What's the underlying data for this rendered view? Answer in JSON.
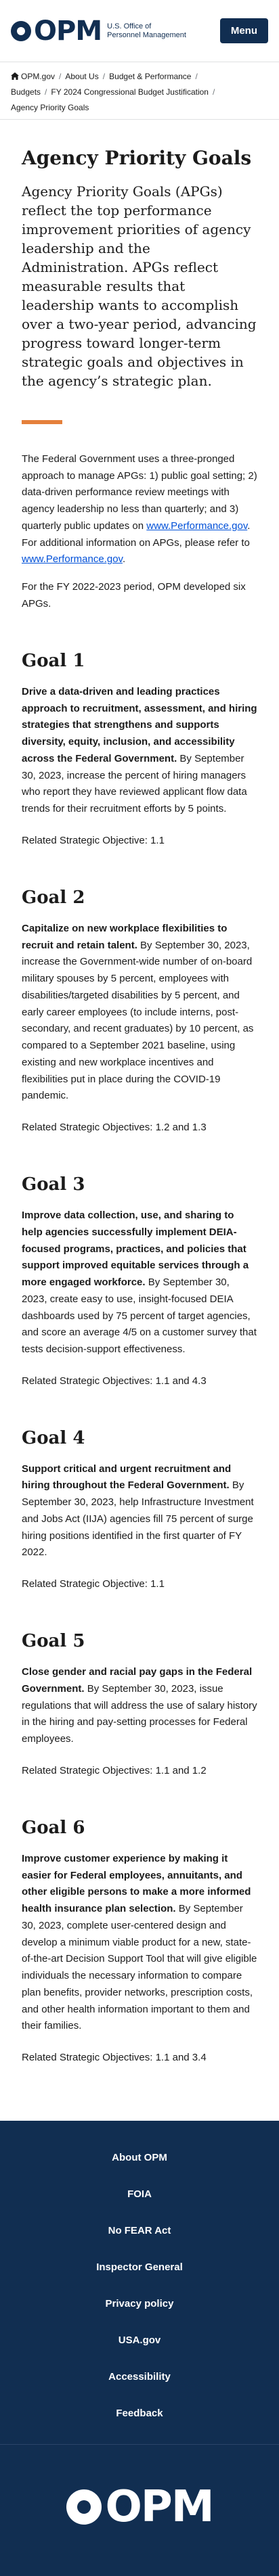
{
  "header": {
    "logo_text": "OPM",
    "agency_line1": "U.S. Office of",
    "agency_line2": "Personnel Management",
    "menu_label": "Menu"
  },
  "breadcrumb": {
    "items": [
      "OPM.gov",
      "About Us",
      "Budget & Performance",
      "Budgets",
      "FY 2024 Congressional Budget Justification"
    ],
    "current": "Agency Priority Goals"
  },
  "main": {
    "title": "Agency Priority Goals",
    "lead": "Agency Priority Goals (APGs) reflect the top performance improvement priorities of agency leadership and the Administration. APGs reflect measurable results that leadership wants to accomplish over a two-year period, advancing progress toward longer-term strategic goals and objectives in the agency’s strategic plan.",
    "intro_p1_text": "The Federal Government uses a three-pronged approach to manage APGs: 1) public goal setting; 2) data-driven performance review meetings with agency leadership no less than quarterly; and 3) quarterly public updates on ",
    "intro_p1_link": "www.Performance.gov",
    "intro_p1_mid": ". For additional information on APGs, please refer to ",
    "intro_p1_link2": "www.Performance.gov",
    "intro_p1_end": ".",
    "intro_p2": "For the FY 2022-2023 period, OPM developed six APGs."
  },
  "goals": [
    {
      "title": "Goal 1",
      "bold": "Drive a data-driven and leading practices approach to recruitment, assessment, and hiring strategies that strengthens and supports diversity, equity, inclusion, and accessibility across the Federal Government.",
      "text": " By September 30, 2023, increase the percent of hiring managers who report they have reviewed applicant flow data trends for their recruitment efforts by 5 points.",
      "objective": "Related Strategic Objective: 1.1"
    },
    {
      "title": "Goal 2",
      "bold": "Capitalize on new workplace flexibilities to recruit and retain talent.",
      "text": " By September 30, 2023, increase the Government-wide number of on-board military spouses by 5 percent, employees with disabilities/targeted disabilities by 5 percent, and early career employees (to include interns, post-secondary, and recent graduates) by 10 percent, as compared to a September 2021 baseline, using existing and new workplace incentives and flexibilities put in place during the COVID-19 pandemic.",
      "objective": "Related Strategic Objectives: 1.2 and 1.3"
    },
    {
      "title": "Goal 3",
      "bold": "Improve data collection, use, and sharing to help agencies successfully implement DEIA-focused programs, practices, and policies that support improved equitable services through a more engaged workforce.",
      "text": " By September 30, 2023, create easy to use, insight-focused DEIA dashboards used by 75 percent of target agencies, and score an average 4/5 on a customer survey that tests decision-support effectiveness.",
      "objective": "Related Strategic Objectives: 1.1 and 4.3"
    },
    {
      "title": "Goal 4",
      "bold": "Support critical and urgent recruitment and hiring throughout the Federal Government.",
      "text": " By September 30, 2023, help Infrastructure Investment and Jobs Act (IIJA) agencies fill 75 percent of surge hiring positions identified in the first quarter of FY 2022.",
      "objective": "Related Strategic Objective: 1.1"
    },
    {
      "title": "Goal 5",
      "bold": "Close gender and racial pay gaps in the Federal Government.",
      "text": " By September 30, 2023, issue regulations that will address the use of salary history in the hiring and pay-setting processes for Federal employees.",
      "objective": "Related Strategic Objectives: 1.1 and 1.2"
    },
    {
      "title": "Goal 6",
      "bold": "Improve customer experience by making it easier for Federal employees, annuitants, and other eligible persons to make a more informed health insurance plan selection.",
      "text": " By September 30, 2023, complete user-centered design and develop a minimum viable product for a new, state-of-the-art Decision Support Tool that will give eligible individuals the necessary information to compare plan benefits, provider networks, prescription costs, and other health information important to them and their families.",
      "objective": "Related Strategic Objectives: 1.1 and 3.4"
    }
  ],
  "footer": {
    "links": [
      "About OPM",
      "FOIA",
      "No FEAR Act",
      "Inspector General",
      "Privacy policy",
      "USA.gov",
      "Accessibility",
      "Feedback"
    ],
    "logo_text": "OPM"
  },
  "colors": {
    "brand_navy": "#112e51",
    "accent_orange": "#e5803b",
    "link_blue": "#0050d8"
  }
}
